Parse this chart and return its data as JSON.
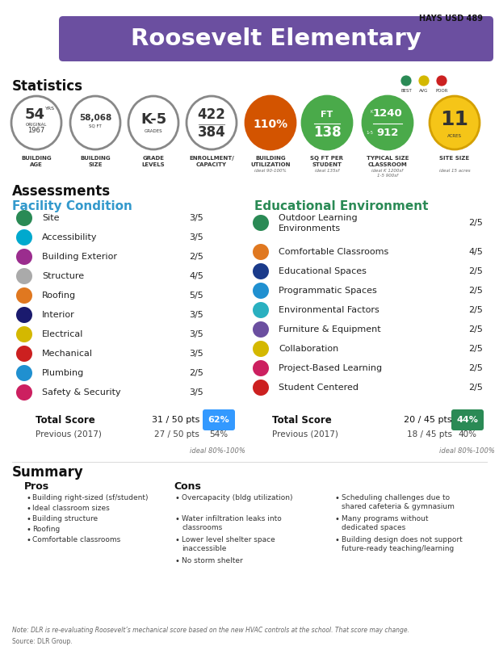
{
  "title": "Roosevelt Elementary",
  "district": "HAYS USD 489",
  "bg_color": "#ffffff",
  "header_color": "#6b4fa0",
  "facility_items": [
    {
      "name": "Site",
      "score": "3/5",
      "color": "#2a8a55"
    },
    {
      "name": "Accessibility",
      "score": "3/5",
      "color": "#00a9ce"
    },
    {
      "name": "Building Exterior",
      "score": "2/5",
      "color": "#9b2d8e"
    },
    {
      "name": "Structure",
      "score": "4/5",
      "color": "#aaaaaa"
    },
    {
      "name": "Roofing",
      "score": "5/5",
      "color": "#e07820"
    },
    {
      "name": "Interior",
      "score": "3/5",
      "color": "#1a1a6e"
    },
    {
      "name": "Electrical",
      "score": "3/5",
      "color": "#d4b800"
    },
    {
      "name": "Mechanical",
      "score": "3/5",
      "color": "#cc2020"
    },
    {
      "name": "Plumbing",
      "score": "2/5",
      "color": "#2090d0"
    },
    {
      "name": "Safety & Security",
      "score": "3/5",
      "color": "#cc2060"
    }
  ],
  "facility_total": "31 / 50 pts",
  "facility_pct": "62%",
  "facility_pct_color": "#3399ff",
  "facility_prev": "27 / 50 pts",
  "facility_prev_pct": "54%",
  "edu_items": [
    {
      "name": "Outdoor Learning\nEnvironments",
      "score": "2/5",
      "color": "#2a8a55"
    },
    {
      "name": "Comfortable Classrooms",
      "score": "4/5",
      "color": "#e07820"
    },
    {
      "name": "Educational Spaces",
      "score": "2/5",
      "color": "#1a3a8a"
    },
    {
      "name": "Programmatic Spaces",
      "score": "2/5",
      "color": "#2090d0"
    },
    {
      "name": "Environmental Factors",
      "score": "2/5",
      "color": "#2ab0c0"
    },
    {
      "name": "Furniture & Equipment",
      "score": "2/5",
      "color": "#6b4fa0"
    },
    {
      "name": "Collaboration",
      "score": "2/5",
      "color": "#d4b800"
    },
    {
      "name": "Project-Based Learning",
      "score": "2/5",
      "color": "#cc2060"
    },
    {
      "name": "Student Centered",
      "score": "2/5",
      "color": "#cc2020"
    }
  ],
  "edu_total": "20 / 45 pts",
  "edu_pct": "44%",
  "edu_pct_color": "#2a8a55",
  "edu_prev": "18 / 45 pts",
  "edu_prev_pct": "40%",
  "pros": [
    "Building right-sized (sf/student)",
    "Ideal classroom sizes",
    "Building structure",
    "Roofing",
    "Comfortable classrooms"
  ],
  "cons_col1": [
    "Overcapacity (bldg utilization)",
    "Water infiltration leaks into\nclassrooms",
    "Lower level shelter space\ninaccessible",
    "No storm shelter"
  ],
  "cons_col2": [
    "Scheduling challenges due to\nshared cafeteria & gymnasium",
    "Many programs without\ndedicated spaces",
    "Building design does not support\nfuture-ready teaching/learning"
  ],
  "note": "Note: DLR is re-evaluating Roosevelt’s mechanical score based on the new HVAC controls at the school. That score may change.",
  "source": "Source: DLR Group."
}
